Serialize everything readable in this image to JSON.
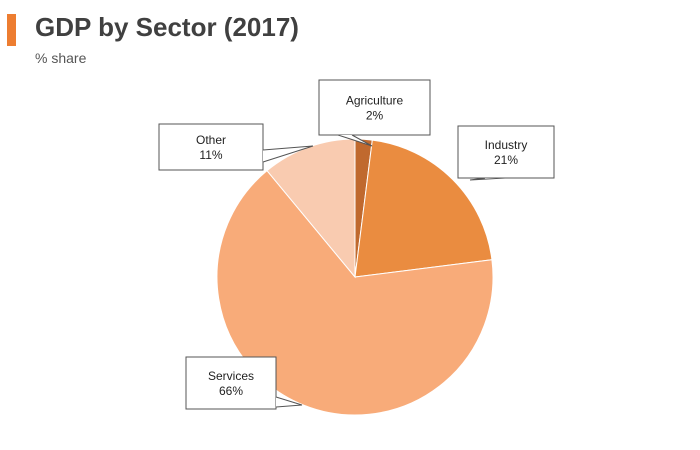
{
  "header": {
    "title": "GDP by Sector (2017)",
    "subtitle": "% share",
    "accent_color": "#ED7D31"
  },
  "chart_data": {
    "type": "pie",
    "title": "GDP by Sector (2017)",
    "subtitle": "% share",
    "legend": "none",
    "slices": [
      {
        "name": "Agriculture",
        "value": 2,
        "label": "2%",
        "color": "#C0692E"
      },
      {
        "name": "Industry",
        "value": 21,
        "label": "21%",
        "color": "#EA8C40"
      },
      {
        "name": "Services",
        "value": 66,
        "label": "66%",
        "color": "#F8AB79"
      },
      {
        "name": "Other",
        "value": 11,
        "label": "11%",
        "color": "#F9CBB0"
      }
    ]
  }
}
